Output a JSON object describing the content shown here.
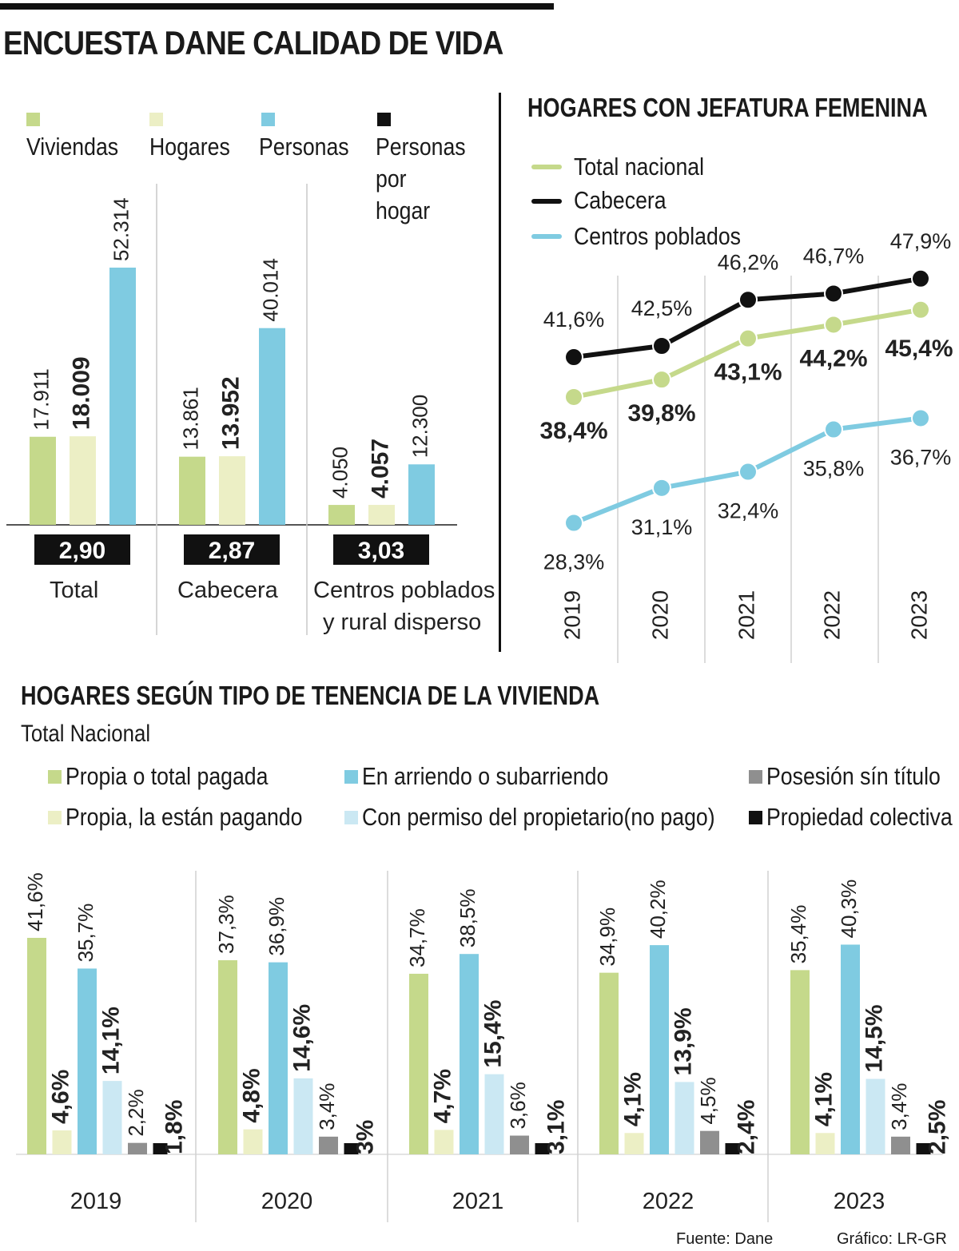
{
  "title": "ENCUESTA DANE CALIDAD DE VIDA",
  "colors": {
    "green": "#c5d98b",
    "cream": "#ecefc5",
    "blue": "#7fcbe1",
    "lightblue": "#cbe8f3",
    "gray": "#8f8f8f",
    "black": "#111111"
  },
  "chart_data": [
    {
      "type": "bar",
      "title": "",
      "legend": [
        "Viviendas",
        "Hogares",
        "Personas",
        "Personas por hogar"
      ],
      "categories": [
        "Total",
        "Cabecera",
        "Centros poblados y rural disperso"
      ],
      "category_lines": [
        [
          "Total"
        ],
        [
          "Cabecera"
        ],
        [
          "Centros poblados",
          "y rural disperso"
        ]
      ],
      "series": [
        {
          "name": "Viviendas",
          "values": [
            17911,
            13861,
            4050
          ],
          "labels": [
            "17.911",
            "13.861",
            "4.050"
          ]
        },
        {
          "name": "Hogares",
          "values": [
            18009,
            13952,
            4057
          ],
          "labels": [
            "18.009",
            "13.952",
            "4.057"
          ]
        },
        {
          "name": "Personas",
          "values": [
            52314,
            40014,
            12300
          ],
          "labels": [
            "52.314",
            "40.014",
            "12.300"
          ]
        }
      ],
      "personas_por_hogar": [
        "2,90",
        "2,87",
        "3,03"
      ],
      "ylim": [
        0,
        55000
      ]
    },
    {
      "type": "line",
      "title": "HOGARES CON JEFATURA FEMENINA",
      "x": [
        "2019",
        "2020",
        "2021",
        "2022",
        "2023"
      ],
      "series": [
        {
          "name": "Total nacional",
          "values": [
            38.4,
            39.8,
            43.1,
            44.2,
            45.4
          ],
          "labels": [
            "38,4%",
            "39,8%",
            "43,1%",
            "44,2%",
            "45,4%"
          ]
        },
        {
          "name": "Cabecera",
          "values": [
            41.6,
            42.5,
            46.2,
            46.7,
            47.9
          ],
          "labels": [
            "41,6%",
            "42,5%",
            "46,2%",
            "46,7%",
            "47,9%"
          ]
        },
        {
          "name": "Centros poblados",
          "values": [
            28.3,
            31.1,
            32.4,
            35.8,
            36.7
          ],
          "labels": [
            "28,3%",
            "31,1%",
            "32,4%",
            "35,8%",
            "36,7%"
          ]
        }
      ]
    },
    {
      "type": "bar",
      "title": "HOGARES SEGÚN TIPO DE TENENCIA DE LA VIVIENDA",
      "subtitle": "Total Nacional",
      "legend": [
        "Propia o total pagada",
        "En arriendo o subarriendo",
        "Posesión sín título",
        "Propia, la están pagando",
        "Con permiso del propietario(no pago)",
        "Propiedad colectiva"
      ],
      "categories": [
        "2019",
        "2020",
        "2021",
        "2022",
        "2023"
      ],
      "series": [
        {
          "name": "Propia o total pagada",
          "values": [
            41.6,
            37.3,
            34.7,
            34.9,
            35.4
          ],
          "labels": [
            "41,6%",
            "37,3%",
            "34,7%",
            "34,9%",
            "35,4%"
          ]
        },
        {
          "name": "Propia, la están pagando",
          "values": [
            4.6,
            4.8,
            4.7,
            4.1,
            4.1
          ],
          "labels": [
            "4,6%",
            "4,8%",
            "4,7%",
            "4,1%",
            "4,1%"
          ]
        },
        {
          "name": "En arriendo o subarriendo",
          "values": [
            35.7,
            36.9,
            38.5,
            40.2,
            40.3
          ],
          "labels": [
            "35,7%",
            "36,9%",
            "38,5%",
            "40,2%",
            "40,3%"
          ]
        },
        {
          "name": "Con permiso del propietario(no pago)",
          "values": [
            14.1,
            14.6,
            15.4,
            13.9,
            14.5
          ],
          "labels": [
            "14,1%",
            "14,6%",
            "15,4%",
            "13,9%",
            "14,5%"
          ]
        },
        {
          "name": "Posesión sín título",
          "values": [
            2.2,
            3.4,
            3.6,
            4.5,
            3.4
          ],
          "labels": [
            "2,2%",
            "3,4%",
            "3,6%",
            "4,5%",
            "3,4%"
          ]
        },
        {
          "name": "Propiedad colectiva",
          "values": [
            1.8,
            3,
            3.1,
            2.4,
            2.5
          ],
          "labels": [
            "1,8%",
            "3%",
            "3,1%",
            "2,4%",
            "2,5%"
          ]
        }
      ],
      "ylim": [
        0,
        45
      ]
    }
  ],
  "footer": {
    "source": "Fuente: Dane",
    "credit": "Gráfico: LR-GR"
  }
}
